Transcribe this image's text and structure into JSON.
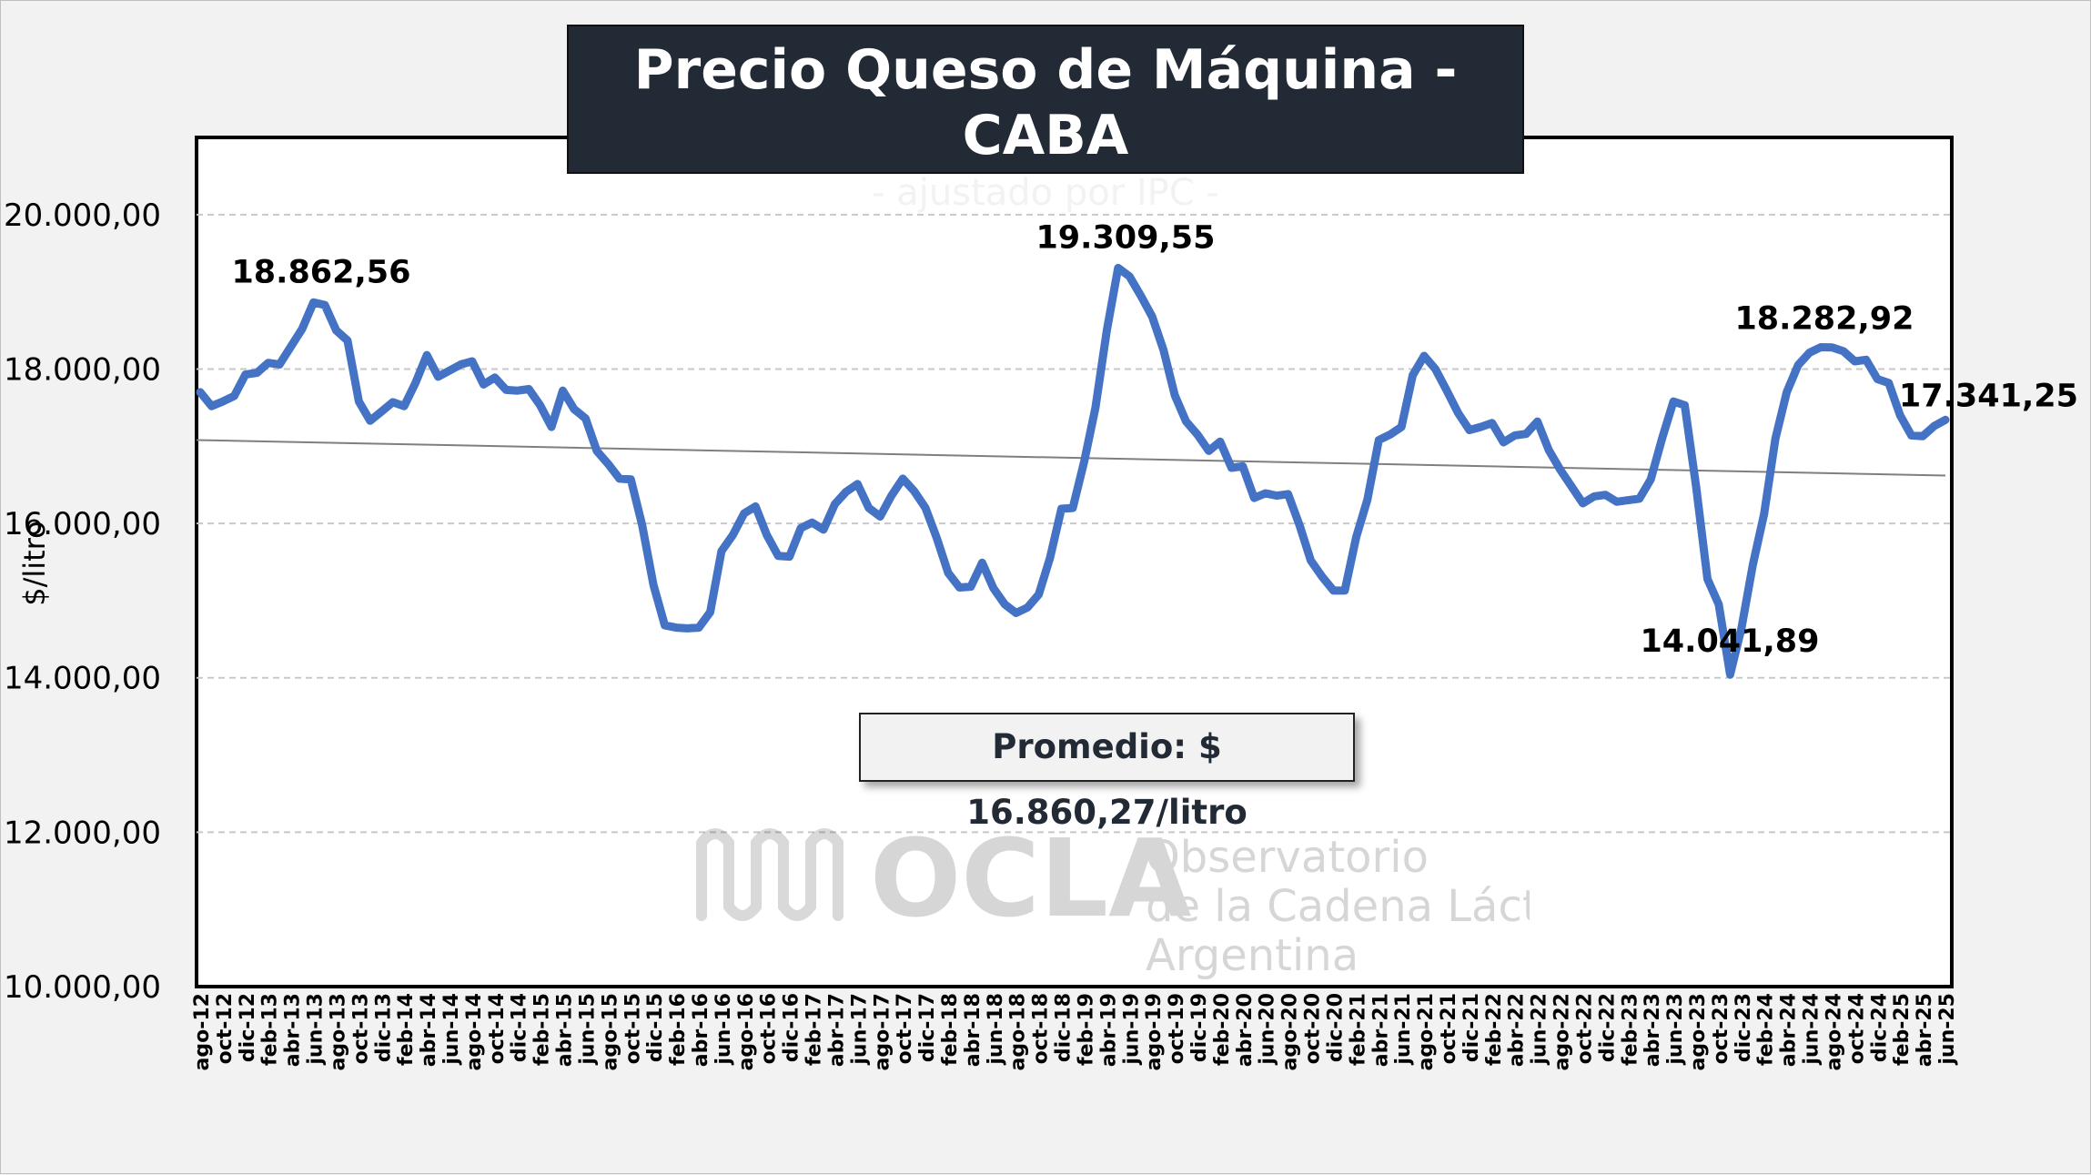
{
  "header": {
    "title": "Precio Queso de Máquina - CABA",
    "subtitle": "- ajustado por IPC -"
  },
  "average_label": "Promedio: $ 16.860,27/litro",
  "watermark": {
    "name": "OCLA",
    "line1": "Observatorio",
    "line2": "de la Cadena Láctea",
    "line3": "Argentina"
  },
  "chart_data": {
    "type": "line",
    "ylabel": "$/litro",
    "xlabel": "",
    "ylim": [
      10000,
      21000
    ],
    "yticks": [
      10000,
      12000,
      14000,
      16000,
      18000,
      20000
    ],
    "ytick_labels": [
      "10.000,00",
      "12.000,00",
      "14.000,00",
      "16.000,00",
      "18.000,00",
      "20.000,00"
    ],
    "grid": true,
    "categories": [
      "ago-12",
      "sep-12",
      "oct-12",
      "nov-12",
      "dic-12",
      "ene-13",
      "feb-13",
      "mar-13",
      "abr-13",
      "may-13",
      "jun-13",
      "jul-13",
      "ago-13",
      "sep-13",
      "oct-13",
      "nov-13",
      "dic-13",
      "ene-14",
      "feb-14",
      "mar-14",
      "abr-14",
      "may-14",
      "jun-14",
      "jul-14",
      "ago-14",
      "sep-14",
      "oct-14",
      "nov-14",
      "dic-14",
      "ene-15",
      "feb-15",
      "mar-15",
      "abr-15",
      "may-15",
      "jun-15",
      "jul-15",
      "ago-15",
      "sep-15",
      "oct-15",
      "nov-15",
      "dic-15",
      "ene-16",
      "feb-16",
      "mar-16",
      "abr-16",
      "may-16",
      "jun-16",
      "jul-16",
      "ago-16",
      "sep-16",
      "oct-16",
      "nov-16",
      "dic-16",
      "ene-17",
      "feb-17",
      "mar-17",
      "abr-17",
      "may-17",
      "jun-17",
      "jul-17",
      "ago-17",
      "sep-17",
      "oct-17",
      "nov-17",
      "dic-17",
      "ene-18",
      "feb-18",
      "mar-18",
      "abr-18",
      "may-18",
      "jun-18",
      "jul-18",
      "ago-18",
      "sep-18",
      "oct-18",
      "nov-18",
      "dic-18",
      "ene-19",
      "feb-19",
      "mar-19",
      "abr-19",
      "may-19",
      "jun-19",
      "jul-19",
      "ago-19",
      "sep-19",
      "oct-19",
      "nov-19",
      "dic-19",
      "ene-20",
      "feb-20",
      "mar-20",
      "abr-20",
      "may-20",
      "jun-20",
      "jul-20",
      "ago-20",
      "sep-20",
      "oct-20",
      "nov-20",
      "dic-20",
      "ene-21",
      "feb-21",
      "mar-21",
      "abr-21",
      "may-21",
      "jun-21",
      "jul-21",
      "ago-21",
      "sep-21",
      "oct-21",
      "nov-21",
      "dic-21",
      "ene-22",
      "feb-22",
      "mar-22",
      "abr-22",
      "may-22",
      "jun-22",
      "jul-22",
      "ago-22",
      "sep-22",
      "oct-22",
      "nov-22",
      "dic-22",
      "ene-23",
      "feb-23",
      "mar-23",
      "abr-23",
      "may-23",
      "jun-23",
      "jul-23",
      "ago-23",
      "sep-23",
      "oct-23",
      "nov-23",
      "dic-23",
      "ene-24",
      "feb-24",
      "mar-24",
      "abr-24",
      "may-24",
      "jun-24",
      "jul-24",
      "ago-24",
      "sep-24",
      "oct-24",
      "nov-24",
      "dic-24",
      "ene-25",
      "feb-25",
      "mar-25",
      "abr-25",
      "may-25",
      "jun-25"
    ],
    "xtick_every": 2,
    "series": [
      {
        "color": "#4472c4",
        "values": [
          17700,
          17520,
          17580,
          17650,
          17930,
          17950,
          18080,
          18060,
          18290,
          18520,
          18862.56,
          18830,
          18500,
          18370,
          17580,
          17330,
          17450,
          17570,
          17520,
          17820,
          18180,
          17900,
          17980,
          18060,
          18100,
          17800,
          17890,
          17730,
          17720,
          17740,
          17530,
          17250,
          17720,
          17480,
          17360,
          16940,
          16770,
          16580,
          16570,
          15980,
          15200,
          14680,
          14650,
          14640,
          14650,
          14850,
          15640,
          15850,
          16130,
          16220,
          15850,
          15580,
          15570,
          15940,
          16010,
          15920,
          16250,
          16410,
          16510,
          16200,
          16090,
          16360,
          16580,
          16420,
          16200,
          15810,
          15360,
          15170,
          15180,
          15490,
          15160,
          14950,
          14840,
          14910,
          15080,
          15560,
          16190,
          16200,
          16800,
          17500,
          18500,
          19309.55,
          19200,
          18950,
          18680,
          18250,
          17660,
          17320,
          17150,
          16940,
          17060,
          16720,
          16740,
          16330,
          16390,
          16360,
          16380,
          15980,
          15520,
          15310,
          15130,
          15130,
          15820,
          16310,
          17080,
          17150,
          17250,
          17920,
          18170,
          18000,
          17720,
          17430,
          17210,
          17250,
          17300,
          17050,
          17140,
          17160,
          17320,
          16950,
          16700,
          16480,
          16260,
          16350,
          16370,
          16280,
          16300,
          16320,
          16570,
          17100,
          17580,
          17530,
          16480,
          15280,
          14950,
          14041.89,
          14640,
          15460,
          16120,
          17100,
          17700,
          18050,
          18210,
          18282.92,
          18280,
          18230,
          18100,
          18120,
          17870,
          17820,
          17400,
          17140,
          17130,
          17260,
          17341.25
        ]
      }
    ],
    "trend_line": {
      "start": 17080,
      "end": 16620
    },
    "annotations": [
      {
        "index": 10,
        "label": "18.862,56"
      },
      {
        "index": 81,
        "label": "19.309,55"
      },
      {
        "index": 134,
        "label": "14.041,89"
      },
      {
        "index": 144,
        "label": "18.282,92"
      },
      {
        "index": 154,
        "label": "17.341,25"
      }
    ]
  }
}
